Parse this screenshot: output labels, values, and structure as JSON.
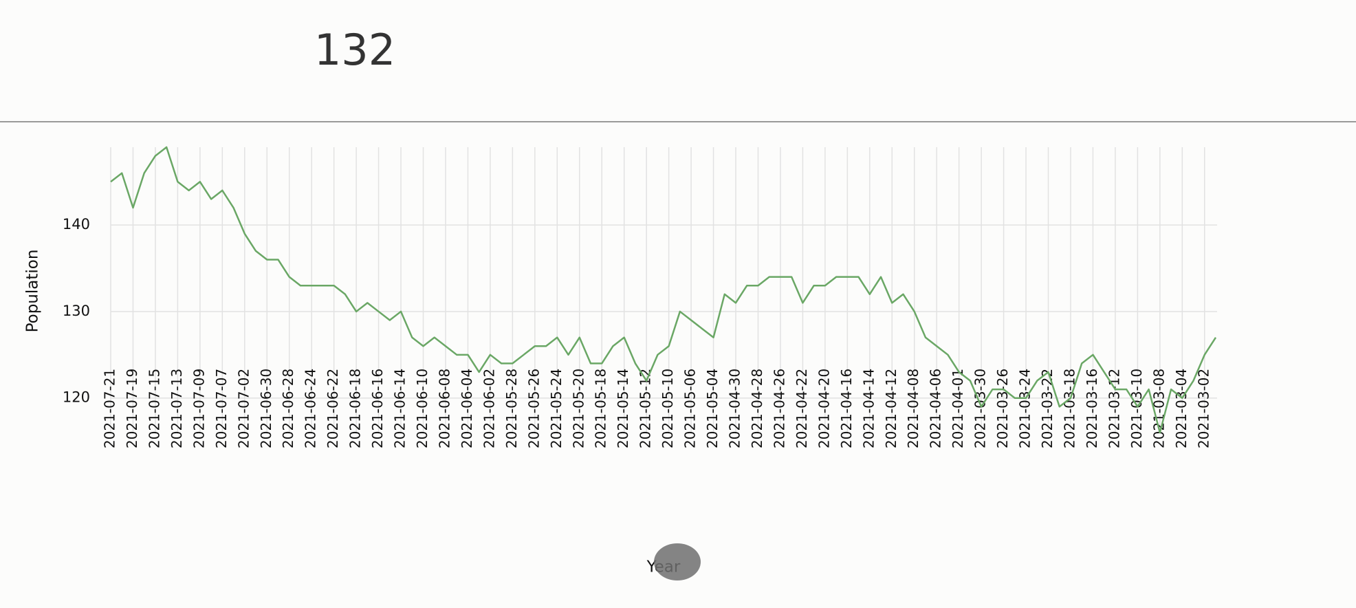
{
  "header": {
    "value": "132"
  },
  "chart_data": {
    "type": "line",
    "x_label": "Year",
    "y_label": "Population",
    "categories": [
      "2021-07-21",
      null,
      "2021-07-19",
      null,
      "2021-07-15",
      null,
      "2021-07-13",
      null,
      "2021-07-09",
      null,
      "2021-07-07",
      null,
      "2021-07-02",
      null,
      "2021-06-30",
      null,
      "2021-06-28",
      null,
      "2021-06-24",
      null,
      "2021-06-22",
      null,
      "2021-06-18",
      null,
      "2021-06-16",
      null,
      "2021-06-14",
      null,
      "2021-06-10",
      null,
      "2021-06-08",
      null,
      "2021-06-04",
      null,
      "2021-06-02",
      null,
      "2021-05-28",
      null,
      "2021-05-26",
      null,
      "2021-05-24",
      null,
      "2021-05-20",
      null,
      "2021-05-18",
      null,
      "2021-05-14",
      null,
      "2021-05-12",
      null,
      "2021-05-10",
      null,
      "2021-05-06",
      null,
      "2021-05-04",
      null,
      "2021-04-30",
      null,
      "2021-04-28",
      null,
      "2021-04-26",
      null,
      "2021-04-22",
      null,
      "2021-04-20",
      null,
      "2021-04-16",
      null,
      "2021-04-14",
      null,
      "2021-04-12",
      null,
      "2021-04-08",
      null,
      "2021-04-06",
      null,
      "2021-04-01",
      null,
      "2021-03-30",
      null,
      "2021-03-26",
      null,
      "2021-03-24",
      null,
      "2021-03-22",
      null,
      "2021-03-18",
      null,
      "2021-03-16",
      null,
      "2021-03-12",
      null,
      "2021-03-10",
      null,
      "2021-03-08",
      null,
      "2021-03-04",
      null,
      "2021-03-02",
      null
    ],
    "series": [
      {
        "name": "Population",
        "color": "#6aa765",
        "values": [
          145,
          146,
          142,
          146,
          148,
          149,
          145,
          144,
          145,
          143,
          144,
          142,
          139,
          137,
          136,
          136,
          134,
          133,
          133,
          133,
          133,
          132,
          130,
          131,
          130,
          129,
          130,
          127,
          126,
          127,
          126,
          125,
          125,
          123,
          125,
          124,
          124,
          125,
          126,
          126,
          127,
          125,
          127,
          124,
          124,
          126,
          127,
          124,
          122,
          125,
          126,
          130,
          129,
          128,
          127,
          132,
          131,
          133,
          133,
          134,
          134,
          134,
          131,
          133,
          133,
          134,
          134,
          134,
          132,
          134,
          131,
          132,
          130,
          127,
          126,
          125,
          123,
          122,
          119,
          121,
          121,
          120,
          120,
          122,
          123,
          119,
          120,
          124,
          125,
          123,
          121,
          121,
          119,
          121,
          116,
          121,
          120,
          122,
          125,
          127
        ]
      }
    ],
    "ylim": [
      116,
      149
    ],
    "yticks": [
      120,
      130,
      140
    ],
    "grid": true
  }
}
